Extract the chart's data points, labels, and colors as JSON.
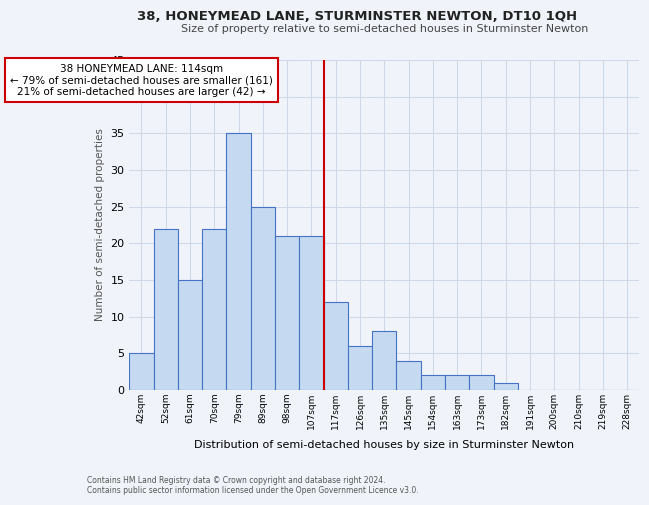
{
  "title": "38, HONEYMEAD LANE, STURMINSTER NEWTON, DT10 1QH",
  "subtitle": "Size of property relative to semi-detached houses in Sturminster Newton",
  "xlabel": "Distribution of semi-detached houses by size in Sturminster Newton",
  "ylabel": "Number of semi-detached properties",
  "footer_line1": "Contains HM Land Registry data © Crown copyright and database right 2024.",
  "footer_line2": "Contains public sector information licensed under the Open Government Licence v3.0.",
  "bin_labels": [
    "42sqm",
    "52sqm",
    "61sqm",
    "70sqm",
    "79sqm",
    "89sqm",
    "98sqm",
    "107sqm",
    "117sqm",
    "126sqm",
    "135sqm",
    "145sqm",
    "154sqm",
    "163sqm",
    "173sqm",
    "182sqm",
    "191sqm",
    "200sqm",
    "210sqm",
    "219sqm",
    "228sqm"
  ],
  "bar_values": [
    5,
    22,
    15,
    22,
    35,
    25,
    21,
    21,
    12,
    6,
    8,
    4,
    2,
    2,
    2,
    1,
    0,
    0,
    0,
    0,
    0
  ],
  "bar_color": "#c5d9f1",
  "bar_edgecolor": "#4472c4",
  "vline_x": 8,
  "vline_color": "#cc0000",
  "ylim": [
    0,
    45
  ],
  "yticks": [
    0,
    5,
    10,
    15,
    20,
    25,
    30,
    35,
    40,
    45
  ],
  "annotation_line1": "38 HONEYMEAD LANE: 114sqm",
  "annotation_line2": "← 79% of semi-detached houses are smaller (161)",
  "annotation_line3": "21% of semi-detached houses are larger (42) →",
  "annotation_box_edgecolor": "#cc0000",
  "grid_color": "#d0d8e8",
  "background_color": "#f0f4fa"
}
